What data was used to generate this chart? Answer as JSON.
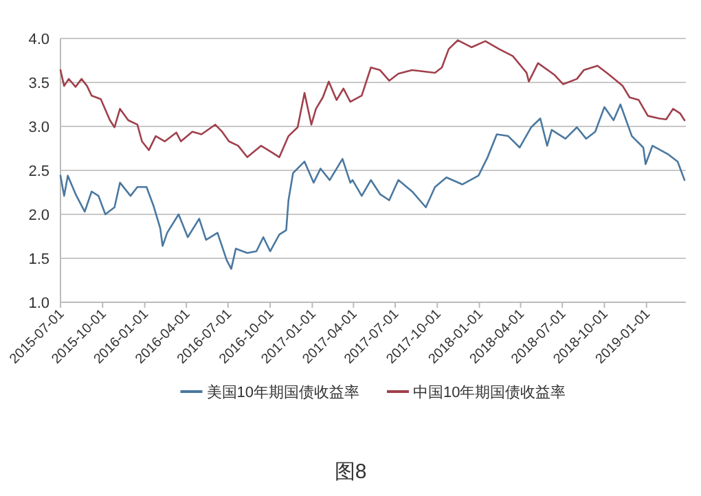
{
  "chart_data": {
    "type": "line",
    "xlim": [
      "2015-07-01",
      "2019-03-28"
    ],
    "ylim": [
      1.0,
      4.0
    ],
    "yticks": [
      {
        "value": 1.0,
        "label": "1.0"
      },
      {
        "value": 1.5,
        "label": "1.5"
      },
      {
        "value": 2.0,
        "label": "2.0"
      },
      {
        "value": 2.5,
        "label": "2.5"
      },
      {
        "value": 3.0,
        "label": "3.0"
      },
      {
        "value": 3.5,
        "label": "3.5"
      },
      {
        "value": 4.0,
        "label": "4.0"
      }
    ],
    "xticks": [
      "2015-07-01",
      "2015-10-01",
      "2016-01-01",
      "2016-04-01",
      "2016-07-01",
      "2016-10-01",
      "2017-01-01",
      "2017-04-01",
      "2017-07-01",
      "2017-10-01",
      "2018-01-01",
      "2018-04-01",
      "2018-07-01",
      "2018-10-01",
      "2019-01-01"
    ],
    "grid": "y",
    "legend": "bottom",
    "line_style": "solid",
    "marker": "none",
    "annotations": [
      "图8"
    ],
    "series": [
      {
        "name": "美国10年期国债收益率",
        "color": "#4a78a0",
        "x": [
          "2015-07-01",
          "2015-07-09",
          "2015-07-17",
          "2015-08-03",
          "2015-08-23",
          "2015-09-07",
          "2015-09-22",
          "2015-10-07",
          "2015-10-27",
          "2015-11-08",
          "2015-12-01",
          "2015-12-16",
          "2016-01-05",
          "2016-01-20",
          "2016-02-04",
          "2016-02-09",
          "2016-02-19",
          "2016-03-15",
          "2016-04-04",
          "2016-04-29",
          "2016-05-14",
          "2016-06-08",
          "2016-06-28",
          "2016-07-08",
          "2016-07-18",
          "2016-08-12",
          "2016-09-01",
          "2016-09-16",
          "2016-10-01",
          "2016-10-21",
          "2016-11-05",
          "2016-11-10",
          "2016-11-20",
          "2016-12-15",
          "2017-01-04",
          "2017-01-19",
          "2017-02-08",
          "2017-03-08",
          "2017-03-25",
          "2017-03-30",
          "2017-04-19",
          "2017-05-09",
          "2017-05-29",
          "2017-06-18",
          "2017-07-08",
          "2017-08-07",
          "2017-09-06",
          "2017-09-26",
          "2017-10-21",
          "2017-11-25",
          "2017-12-30",
          "2018-01-19",
          "2018-02-08",
          "2018-03-05",
          "2018-03-30",
          "2018-04-24",
          "2018-05-14",
          "2018-05-29",
          "2018-06-08",
          "2018-07-08",
          "2018-08-02",
          "2018-08-22",
          "2018-09-11",
          "2018-10-01",
          "2018-10-21",
          "2018-11-05",
          "2018-11-30",
          "2018-12-25",
          "2018-12-30",
          "2019-01-14",
          "2019-02-18",
          "2019-03-10",
          "2019-03-25"
        ],
        "values": [
          2.44,
          2.21,
          2.44,
          2.23,
          2.03,
          2.26,
          2.21,
          2.0,
          2.08,
          2.36,
          2.21,
          2.31,
          2.31,
          2.1,
          1.84,
          1.64,
          1.79,
          2.0,
          1.74,
          1.95,
          1.71,
          1.79,
          1.48,
          1.38,
          1.61,
          1.56,
          1.58,
          1.74,
          1.58,
          1.77,
          1.82,
          2.16,
          2.47,
          2.6,
          2.36,
          2.52,
          2.39,
          2.63,
          2.36,
          2.39,
          2.21,
          2.39,
          2.23,
          2.16,
          2.39,
          2.26,
          2.08,
          2.31,
          2.42,
          2.34,
          2.44,
          2.65,
          2.91,
          2.89,
          2.76,
          2.99,
          3.09,
          2.78,
          2.96,
          2.86,
          2.99,
          2.86,
          2.94,
          3.22,
          3.07,
          3.25,
          2.89,
          2.76,
          2.57,
          2.78,
          2.68,
          2.6,
          2.39
        ]
      },
      {
        "name": "中国10年期国债收益率",
        "color": "#a0404c",
        "x": [
          "2015-07-01",
          "2015-07-09",
          "2015-07-19",
          "2015-08-03",
          "2015-08-16",
          "2015-08-28",
          "2015-09-07",
          "2015-09-27",
          "2015-10-17",
          "2015-10-27",
          "2015-11-08",
          "2015-11-26",
          "2015-12-16",
          "2015-12-26",
          "2016-01-10",
          "2016-01-25",
          "2016-02-14",
          "2016-03-10",
          "2016-03-20",
          "2016-04-14",
          "2016-05-04",
          "2016-06-03",
          "2016-06-18",
          "2016-07-03",
          "2016-07-23",
          "2016-08-12",
          "2016-09-11",
          "2016-10-06",
          "2016-10-21",
          "2016-11-10",
          "2016-11-30",
          "2016-12-15",
          "2016-12-30",
          "2017-01-09",
          "2017-01-24",
          "2017-02-06",
          "2017-02-23",
          "2017-03-10",
          "2017-03-25",
          "2017-04-19",
          "2017-05-09",
          "2017-05-29",
          "2017-06-18",
          "2017-07-08",
          "2017-08-07",
          "2017-09-26",
          "2017-10-11",
          "2017-10-26",
          "2017-11-15",
          "2017-12-15",
          "2018-01-14",
          "2018-02-13",
          "2018-03-15",
          "2018-04-14",
          "2018-04-19",
          "2018-05-09",
          "2018-06-13",
          "2018-07-03",
          "2018-08-02",
          "2018-08-17",
          "2018-09-16",
          "2018-10-11",
          "2018-11-10",
          "2018-11-25",
          "2018-12-15",
          "2019-01-04",
          "2019-01-29",
          "2019-02-13",
          "2019-02-28",
          "2019-03-15",
          "2019-03-25"
        ],
        "values": [
          3.64,
          3.46,
          3.54,
          3.45,
          3.54,
          3.46,
          3.35,
          3.31,
          3.07,
          2.99,
          3.2,
          3.07,
          3.02,
          2.83,
          2.73,
          2.89,
          2.83,
          2.93,
          2.83,
          2.94,
          2.91,
          3.02,
          2.94,
          2.83,
          2.78,
          2.65,
          2.78,
          2.7,
          2.65,
          2.89,
          2.99,
          3.38,
          3.02,
          3.2,
          3.33,
          3.51,
          3.3,
          3.43,
          3.28,
          3.35,
          3.67,
          3.64,
          3.52,
          3.6,
          3.64,
          3.61,
          3.67,
          3.88,
          3.98,
          3.9,
          3.97,
          3.88,
          3.8,
          3.61,
          3.51,
          3.72,
          3.59,
          3.48,
          3.54,
          3.64,
          3.69,
          3.59,
          3.46,
          3.33,
          3.3,
          3.12,
          3.09,
          3.08,
          3.2,
          3.15,
          3.07
        ]
      }
    ]
  }
}
